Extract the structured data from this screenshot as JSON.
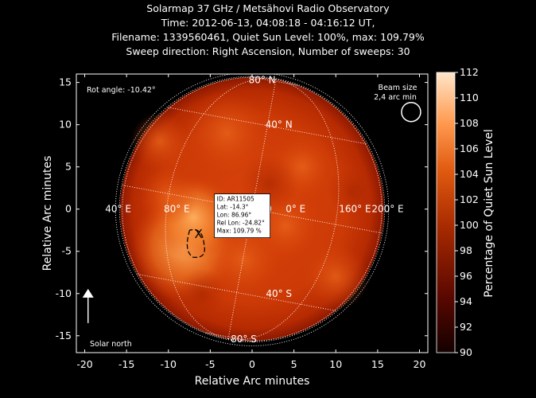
{
  "title_lines": [
    "Solarmap 37 GHz / Metsähovi Radio Observatory",
    "Time: 2012-06-13, 04:08:18 - 04:16:12 UT,",
    "Filename: 1339560461, Quiet Sun Level: 100%, max: 109.79%",
    "Sweep direction: Right Ascension, Number of sweeps: 30"
  ],
  "chart_data": {
    "type": "heatmap",
    "xlabel": "Relative Arc minutes",
    "ylabel": "Relative Arc minutes",
    "xlim": [
      -21,
      21
    ],
    "ylim": [
      -17,
      16
    ],
    "xticks": [
      -20,
      -15,
      -10,
      -5,
      0,
      5,
      10,
      15,
      20
    ],
    "yticks": [
      -15,
      -10,
      -5,
      0,
      5,
      10,
      15
    ],
    "sun_radius_arcmin": 15.75,
    "colorbar": {
      "label": "Percentage of Quiet Sun Level",
      "range": [
        90,
        112
      ],
      "ticks": [
        90,
        92,
        94,
        96,
        98,
        100,
        102,
        104,
        106,
        108,
        110,
        112
      ],
      "colors": [
        "#140000",
        "#5a0800",
        "#a82a00",
        "#e05a10",
        "#ff9a50",
        "#ffe5c8"
      ]
    },
    "active_region": {
      "id": "ID: AR11505",
      "lat": "Lat: -14.3°",
      "lon": "Lon: 86.96°",
      "rel_lon": "Rel Lon: -24.82°",
      "max": "Max: 109.79 %",
      "x": -6.5,
      "y": -4,
      "marker": "X"
    },
    "grid_labels": {
      "lat_north_80": "80° N",
      "lat_north_40": "40° N",
      "lat_south_40": "40° S",
      "lat_south_80": "80° S",
      "lon_m40": "40° E",
      "lon_80": "80° E",
      "lon_0": "0",
      "lon_0_e": "0° E",
      "lon_160": "160° E",
      "lon_200": "200° E"
    },
    "rot_angle": "Rot angle: -10.42°",
    "beam_size": [
      "Beam size",
      "2,4 arc min"
    ],
    "solar_north": "Solar north"
  }
}
